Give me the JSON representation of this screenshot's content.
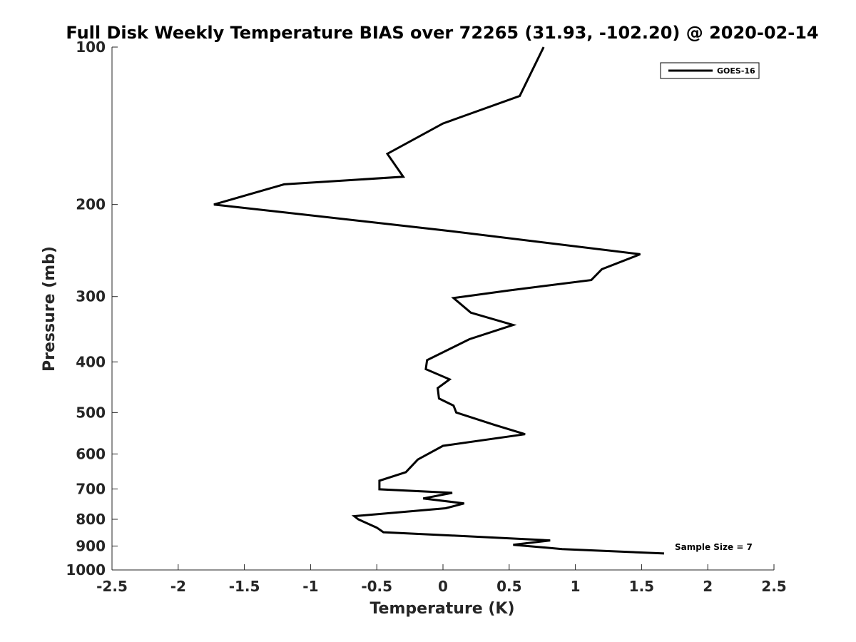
{
  "chart_data": {
    "type": "line",
    "title": "Full Disk Weekly Temperature BIAS over 72265 (31.93, -102.20) @ 2020-02-14",
    "xlabel": "Temperature (K)",
    "ylabel": "Pressure (mb)",
    "xlim": [
      -2.5,
      2.5
    ],
    "ylim": [
      100,
      1000
    ],
    "y_scale": "log",
    "y_reversed": true,
    "grid": false,
    "legend_position": "top-right",
    "xticks": [
      -2.5,
      -2,
      -1.5,
      -1,
      -0.5,
      0,
      0.5,
      1,
      1.5,
      2,
      2.5
    ],
    "xtick_labels": [
      "-2.5",
      "-2",
      "-1.5",
      "-1",
      "-0.5",
      "0",
      "0.5",
      "1",
      "1.5",
      "2",
      "2.5"
    ],
    "yticks": [
      100,
      200,
      300,
      400,
      500,
      600,
      700,
      800,
      900,
      1000
    ],
    "ytick_labels": [
      "100",
      "200",
      "300",
      "400",
      "500",
      "600",
      "700",
      "800",
      "900",
      "1000"
    ],
    "series": [
      {
        "name": "GOES-16",
        "color": "#000000",
        "x": [
          0.76,
          0.58,
          0.0,
          -0.42,
          -0.3,
          -1.2,
          -1.73,
          0.0,
          1.49,
          1.2,
          1.12,
          0.5,
          0.08,
          0.21,
          0.53,
          0.2,
          -0.12,
          -0.13,
          0.05,
          -0.04,
          -0.03,
          0.08,
          0.1,
          0.39,
          0.62,
          0.0,
          -0.19,
          -0.28,
          -0.48,
          -0.48,
          0.07,
          -0.15,
          0.16,
          0.02,
          -0.67,
          -0.64,
          -0.5,
          -0.45,
          0.1,
          0.81,
          0.53,
          0.9,
          1.67
        ],
        "y": [
          100,
          124,
          140,
          160,
          177,
          183,
          200,
          224,
          249,
          266,
          279,
          292,
          302,
          322,
          340,
          362,
          397,
          413,
          432,
          449,
          470,
          485,
          500,
          528,
          550,
          579,
          615,
          650,
          675,
          701,
          712,
          730,
          746,
          762,
          789,
          800,
          830,
          847,
          860,
          878,
          895,
          912,
          930
        ]
      }
    ],
    "annotations": [
      "Sample Size = 7"
    ]
  }
}
